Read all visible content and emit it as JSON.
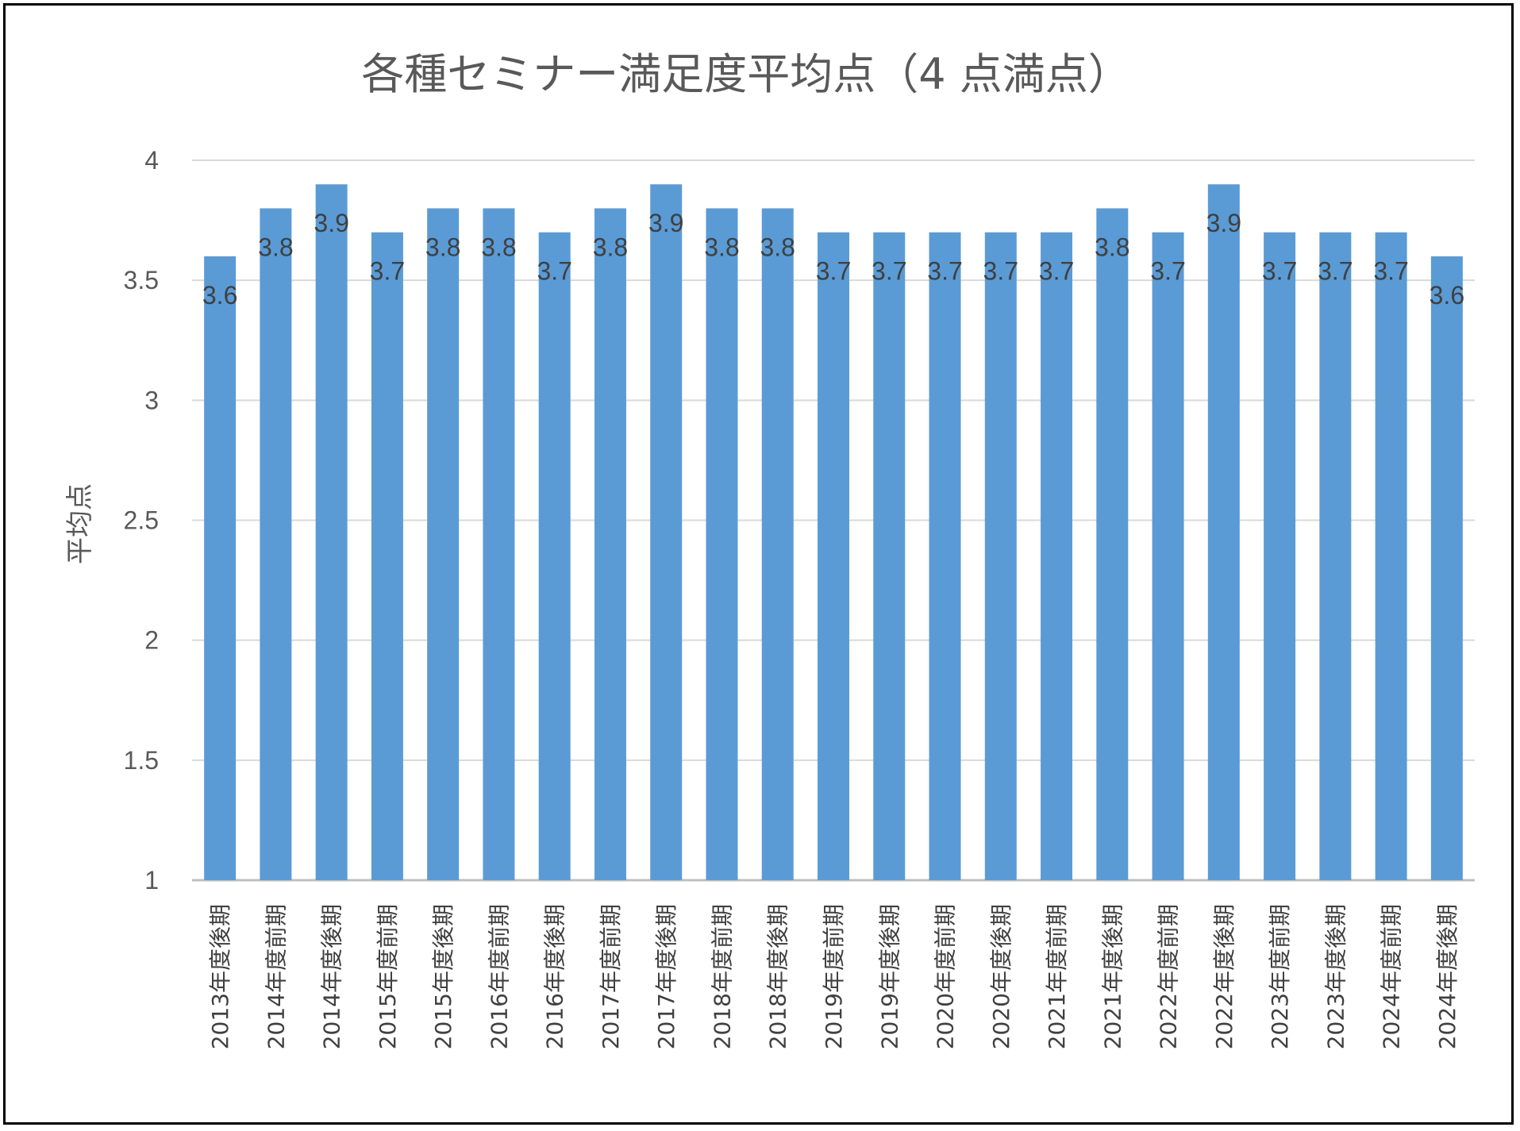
{
  "chart_data": {
    "type": "bar",
    "title": "各種セミナー満足度平均点（4 点満点）",
    "ylabel": "平均点",
    "xlabel": "",
    "ylim": [
      1,
      4
    ],
    "yticks": [
      "1",
      "1.5",
      "2",
      "2.5",
      "3",
      "3.5",
      "4"
    ],
    "grid": true,
    "bar_color": "#5b9bd5",
    "categories": [
      "2013年度後期",
      "2014年度前期",
      "2014年度後期",
      "2015年度前期",
      "2015年度後期",
      "2016年度前期",
      "2016年度後期",
      "2017年度前期",
      "2017年度後期",
      "2018年度前期",
      "2018年度後期",
      "2019年度前期",
      "2019年度後期",
      "2020年度前期",
      "2020年度後期",
      "2021年度前期",
      "2021年度後期",
      "2022年度前期",
      "2022年度後期",
      "2023年度前期",
      "2023年度後期",
      "2024年度前期",
      "2024年度後期"
    ],
    "values": [
      3.6,
      3.8,
      3.9,
      3.7,
      3.8,
      3.8,
      3.7,
      3.8,
      3.9,
      3.8,
      3.8,
      3.7,
      3.7,
      3.7,
      3.7,
      3.7,
      3.8,
      3.7,
      3.9,
      3.7,
      3.7,
      3.7,
      3.6
    ],
    "data_labels": [
      "3.6",
      "3.8",
      "3.9",
      "3.7",
      "3.8",
      "3.8",
      "3.7",
      "3.8",
      "3.9",
      "3.8",
      "3.8",
      "3.7",
      "3.7",
      "3.7",
      "3.7",
      "3.7",
      "3.8",
      "3.7",
      "3.9",
      "3.7",
      "3.7",
      "3.7",
      "3.6"
    ]
  }
}
